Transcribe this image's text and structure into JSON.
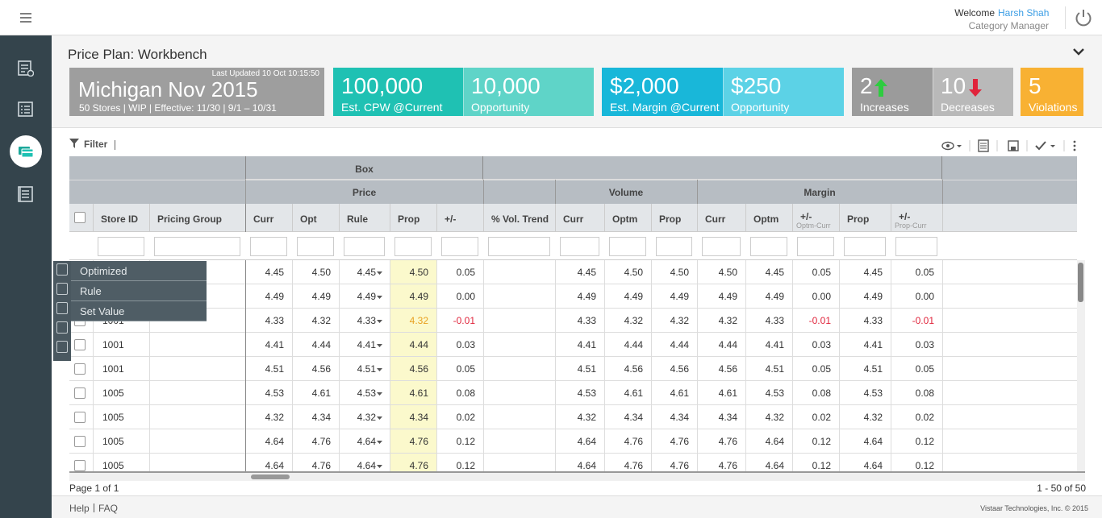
{
  "header": {
    "welcome": "Welcome",
    "user": "Harsh Shah",
    "role": "Category Manager"
  },
  "page": {
    "title": "Price Plan: Workbench"
  },
  "plan": {
    "name": "Michigan Nov 2015",
    "updated": "Last Updated 10 Oct 10:15:50",
    "details": "50 Stores | WIP | Effective: 11/30 | 9/1 – 10/31"
  },
  "kpis": [
    {
      "value": "100,000",
      "label": "Est. CPW @Current"
    },
    {
      "value": "10,000",
      "label": "Opportunity"
    },
    {
      "value": "$2,000",
      "label": "Est. Margin @Current"
    },
    {
      "value": "$250",
      "label": "Opportunity"
    },
    {
      "value": "2",
      "label": "Increases"
    },
    {
      "value": "10",
      "label": "Decreases"
    },
    {
      "value": "5",
      "label": "Violations"
    }
  ],
  "toolbar": {
    "filter": "Filter"
  },
  "table": {
    "group": "Box",
    "sections": [
      "Price",
      "Volume",
      "Margin"
    ],
    "columns": [
      {
        "label": "Store ID"
      },
      {
        "label": "Pricing Group"
      },
      {
        "label": "Curr"
      },
      {
        "label": "Opt"
      },
      {
        "label": "Rule"
      },
      {
        "label": "Prop"
      },
      {
        "label": "+/-"
      },
      {
        "label": "% Vol. Trend"
      },
      {
        "label": "Curr"
      },
      {
        "label": "Optm"
      },
      {
        "label": "Prop"
      },
      {
        "label": "Curr"
      },
      {
        "label": "Optm"
      },
      {
        "label": "+/-",
        "sublabel": "Optm-Curr"
      },
      {
        "label": "Prop"
      },
      {
        "label": "+/-",
        "sublabel": "Prop-Curr"
      }
    ],
    "rows": [
      [
        null,
        null,
        "4.45",
        "4.50",
        "4.45",
        "4.50",
        "0.05",
        null,
        "4.45",
        "4.50",
        "4.50",
        "4.50",
        "4.45",
        "0.05",
        "4.45",
        "0.05"
      ],
      [
        null,
        null,
        "4.49",
        "4.49",
        "4.49",
        "4.49",
        "0.00",
        null,
        "4.49",
        "4.49",
        "4.49",
        "4.49",
        "4.49",
        "0.00",
        "4.49",
        "0.00"
      ],
      [
        "1001",
        null,
        "4.33",
        "4.32",
        "4.33",
        "4.32",
        "-0.01",
        null,
        "4.33",
        "4.32",
        "4.32",
        "4.32",
        "4.33",
        "-0.01",
        "4.33",
        "-0.01"
      ],
      [
        "1001",
        null,
        "4.41",
        "4.44",
        "4.41",
        "4.44",
        "0.03",
        null,
        "4.41",
        "4.44",
        "4.44",
        "4.44",
        "4.41",
        "0.03",
        "4.41",
        "0.03"
      ],
      [
        "1001",
        null,
        "4.51",
        "4.56",
        "4.51",
        "4.56",
        "0.05",
        null,
        "4.51",
        "4.56",
        "4.56",
        "4.56",
        "4.51",
        "0.05",
        "4.51",
        "0.05"
      ],
      [
        "1005",
        null,
        "4.53",
        "4.61",
        "4.53",
        "4.61",
        "0.08",
        null,
        "4.53",
        "4.61",
        "4.61",
        "4.61",
        "4.53",
        "0.08",
        "4.53",
        "0.08"
      ],
      [
        "1005",
        null,
        "4.32",
        "4.34",
        "4.32",
        "4.34",
        "0.02",
        null,
        "4.32",
        "4.34",
        "4.34",
        "4.34",
        "4.32",
        "0.02",
        "4.32",
        "0.02"
      ],
      [
        "1005",
        null,
        "4.64",
        "4.76",
        "4.64",
        "4.76",
        "0.12",
        null,
        "4.64",
        "4.76",
        "4.76",
        "4.76",
        "4.64",
        "0.12",
        "4.64",
        "0.12"
      ],
      [
        "1005",
        null,
        "4.64",
        "4.76",
        "4.64",
        "4.76",
        "0.12",
        null,
        "4.64",
        "4.76",
        "4.76",
        "4.76",
        "4.64",
        "0.12",
        "4.64",
        "0.12"
      ]
    ]
  },
  "menu": [
    "Optimized",
    "Rule",
    "Set Value"
  ],
  "pager": {
    "page": "Page 1 of 1",
    "range": "1 - 50 of 50"
  },
  "footer": {
    "links": [
      "Help",
      "FAQ"
    ],
    "copyright": "Vistaar Technologies, Inc. © 2015"
  }
}
